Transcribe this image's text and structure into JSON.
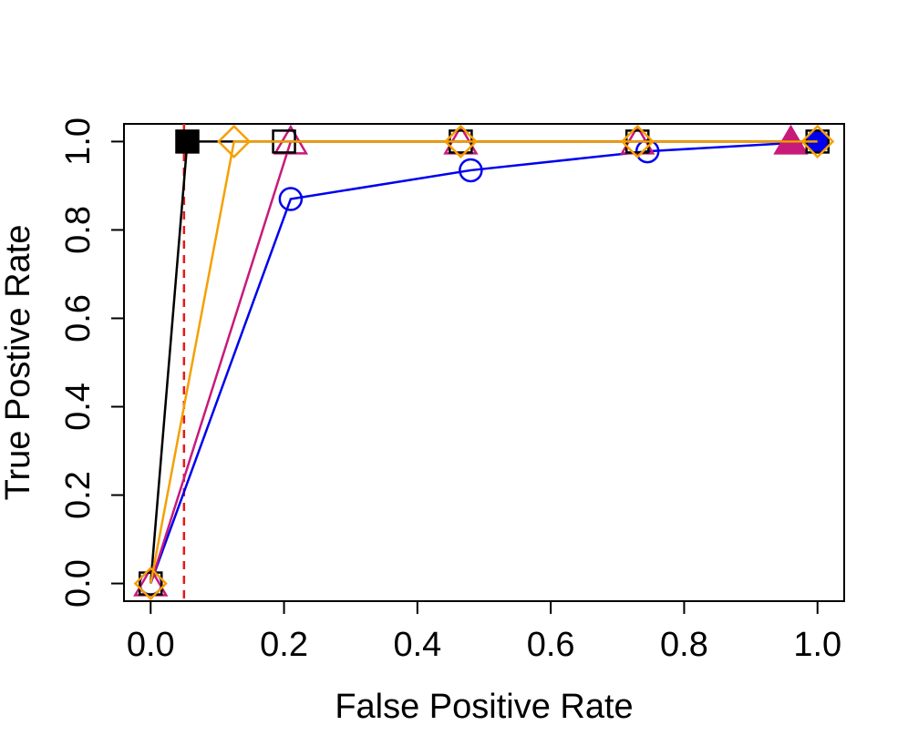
{
  "chart_data": {
    "type": "line",
    "title": "",
    "xlabel": "False Positive Rate",
    "ylabel": "True Postive Rate",
    "xlim": [
      -0.04,
      1.04
    ],
    "ylim": [
      -0.04,
      1.04
    ],
    "x_ticks": [
      0.0,
      0.2,
      0.4,
      0.6,
      0.8,
      1.0
    ],
    "y_ticks": [
      0.0,
      0.2,
      0.4,
      0.6,
      0.8,
      1.0
    ],
    "x_tick_labels": [
      "0.0",
      "0.2",
      "0.4",
      "0.6",
      "0.8",
      "1.0"
    ],
    "y_tick_labels": [
      "0.0",
      "0.2",
      "0.4",
      "0.6",
      "0.8",
      "1.0"
    ],
    "grid": false,
    "reference_line": {
      "orientation": "vertical",
      "x": 0.05,
      "color": "#e41a1c",
      "style": "dashed"
    },
    "series": [
      {
        "name": "blue-circle",
        "color": "#0000ee",
        "marker": "circle",
        "x": [
          0.0,
          0.21,
          0.48,
          0.745,
          1.0
        ],
        "y": [
          0.0,
          0.87,
          0.935,
          0.978,
          1.0
        ],
        "filled": [
          false,
          false,
          false,
          false,
          true
        ]
      },
      {
        "name": "magenta-triangle",
        "color": "#c71a7a",
        "marker": "triangle",
        "x": [
          0.0,
          0.21,
          0.465,
          0.73,
          0.96
        ],
        "y": [
          0.0,
          1.0,
          1.0,
          1.0,
          1.0
        ],
        "filled": [
          false,
          false,
          false,
          false,
          true
        ]
      },
      {
        "name": "black-square",
        "color": "#000000",
        "marker": "square",
        "x": [
          0.0,
          0.055,
          0.2,
          0.465,
          0.73,
          1.0
        ],
        "y": [
          0.0,
          1.0,
          1.0,
          1.0,
          1.0,
          1.0
        ],
        "filled": [
          false,
          true,
          false,
          false,
          false,
          false
        ]
      },
      {
        "name": "orange-diamond",
        "color": "#f5a000",
        "marker": "diamond",
        "x": [
          0.0,
          0.125,
          0.465,
          0.73,
          1.0
        ],
        "y": [
          0.0,
          1.0,
          1.0,
          1.0,
          1.0
        ],
        "filled": [
          false,
          false,
          false,
          false,
          false
        ]
      }
    ]
  }
}
